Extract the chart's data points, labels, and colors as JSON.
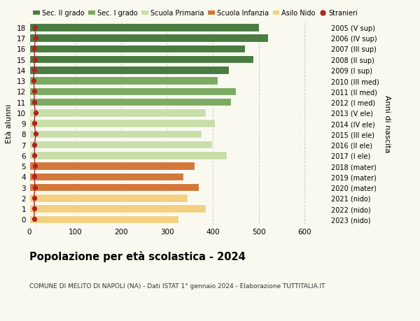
{
  "ages": [
    18,
    17,
    16,
    15,
    14,
    13,
    12,
    11,
    10,
    9,
    8,
    7,
    6,
    5,
    4,
    3,
    2,
    1,
    0
  ],
  "values": [
    500,
    520,
    470,
    488,
    435,
    410,
    450,
    440,
    385,
    405,
    375,
    398,
    430,
    360,
    335,
    370,
    345,
    385,
    325
  ],
  "stranieri": [
    12,
    14,
    10,
    12,
    10,
    9,
    11,
    10,
    13,
    10,
    14,
    11,
    11,
    12,
    11,
    12,
    10,
    11,
    10
  ],
  "right_labels": [
    "2005 (V sup)",
    "2006 (IV sup)",
    "2007 (III sup)",
    "2008 (II sup)",
    "2009 (I sup)",
    "2010 (III med)",
    "2011 (II med)",
    "2012 (I med)",
    "2013 (V ele)",
    "2014 (IV ele)",
    "2015 (III ele)",
    "2016 (II ele)",
    "2017 (I ele)",
    "2018 (mater)",
    "2019 (mater)",
    "2020 (mater)",
    "2021 (nido)",
    "2022 (nido)",
    "2023 (nido)"
  ],
  "colors": {
    "sec2": "#4a7c40",
    "sec1": "#7aab60",
    "primaria": "#c8dfa8",
    "infanzia": "#d4783a",
    "nido": "#f5d080",
    "stranieri": "#b22222"
  },
  "bar_colors": [
    "#4a7c40",
    "#4a7c40",
    "#4a7c40",
    "#4a7c40",
    "#4a7c40",
    "#7aab60",
    "#7aab60",
    "#7aab60",
    "#c8dfa8",
    "#c8dfa8",
    "#c8dfa8",
    "#c8dfa8",
    "#c8dfa8",
    "#d4783a",
    "#d4783a",
    "#d4783a",
    "#f5d080",
    "#f5d080",
    "#f5d080"
  ],
  "legend_labels": [
    "Sec. II grado",
    "Sec. I grado",
    "Scuola Primaria",
    "Scuola Infanzia",
    "Asilo Nido",
    "Stranieri"
  ],
  "legend_colors": [
    "#4a7c40",
    "#7aab60",
    "#c8dfa8",
    "#d4783a",
    "#f5d080",
    "#b22222"
  ],
  "ylabel": "Età alunni",
  "right_ylabel": "Anni di nascita",
  "title": "Popolazione per età scolastica - 2024",
  "subtitle": "COMUNE DI MELITO DI NAPOLI (NA) - Dati ISTAT 1° gennaio 2024 - Elaborazione TUTTITALIA.IT",
  "xlim": [
    0,
    650
  ],
  "background_color": "#f9f9f0",
  "grid_color": "#cccccc"
}
